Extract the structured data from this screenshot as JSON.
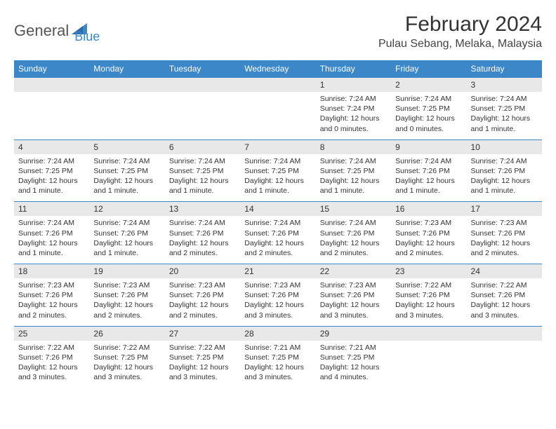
{
  "logo": {
    "text1": "General",
    "text2": "Blue"
  },
  "title": "February 2024",
  "location": "Pulau Sebang, Melaka, Malaysia",
  "colors": {
    "header_bg": "#3b87c8",
    "header_text": "#ffffff",
    "daynum_bg": "#e8e8e8",
    "row_border": "#3b87c8",
    "text": "#333333",
    "logo_gray": "#555555",
    "logo_blue": "#3b87c8",
    "background": "#ffffff"
  },
  "fonts": {
    "title_size": 30,
    "location_size": 16,
    "weekday_size": 12,
    "daynum_size": 12,
    "detail_size": 10.5
  },
  "weekdays": [
    "Sunday",
    "Monday",
    "Tuesday",
    "Wednesday",
    "Thursday",
    "Friday",
    "Saturday"
  ],
  "weeks": [
    {
      "days": [
        null,
        null,
        null,
        null,
        {
          "n": "1",
          "sr": "7:24 AM",
          "ss": "7:24 PM",
          "dl": "12 hours and 0 minutes."
        },
        {
          "n": "2",
          "sr": "7:24 AM",
          "ss": "7:25 PM",
          "dl": "12 hours and 0 minutes."
        },
        {
          "n": "3",
          "sr": "7:24 AM",
          "ss": "7:25 PM",
          "dl": "12 hours and 1 minute."
        }
      ]
    },
    {
      "days": [
        {
          "n": "4",
          "sr": "7:24 AM",
          "ss": "7:25 PM",
          "dl": "12 hours and 1 minute."
        },
        {
          "n": "5",
          "sr": "7:24 AM",
          "ss": "7:25 PM",
          "dl": "12 hours and 1 minute."
        },
        {
          "n": "6",
          "sr": "7:24 AM",
          "ss": "7:25 PM",
          "dl": "12 hours and 1 minute."
        },
        {
          "n": "7",
          "sr": "7:24 AM",
          "ss": "7:25 PM",
          "dl": "12 hours and 1 minute."
        },
        {
          "n": "8",
          "sr": "7:24 AM",
          "ss": "7:25 PM",
          "dl": "12 hours and 1 minute."
        },
        {
          "n": "9",
          "sr": "7:24 AM",
          "ss": "7:26 PM",
          "dl": "12 hours and 1 minute."
        },
        {
          "n": "10",
          "sr": "7:24 AM",
          "ss": "7:26 PM",
          "dl": "12 hours and 1 minute."
        }
      ]
    },
    {
      "days": [
        {
          "n": "11",
          "sr": "7:24 AM",
          "ss": "7:26 PM",
          "dl": "12 hours and 1 minute."
        },
        {
          "n": "12",
          "sr": "7:24 AM",
          "ss": "7:26 PM",
          "dl": "12 hours and 1 minute."
        },
        {
          "n": "13",
          "sr": "7:24 AM",
          "ss": "7:26 PM",
          "dl": "12 hours and 2 minutes."
        },
        {
          "n": "14",
          "sr": "7:24 AM",
          "ss": "7:26 PM",
          "dl": "12 hours and 2 minutes."
        },
        {
          "n": "15",
          "sr": "7:24 AM",
          "ss": "7:26 PM",
          "dl": "12 hours and 2 minutes."
        },
        {
          "n": "16",
          "sr": "7:23 AM",
          "ss": "7:26 PM",
          "dl": "12 hours and 2 minutes."
        },
        {
          "n": "17",
          "sr": "7:23 AM",
          "ss": "7:26 PM",
          "dl": "12 hours and 2 minutes."
        }
      ]
    },
    {
      "days": [
        {
          "n": "18",
          "sr": "7:23 AM",
          "ss": "7:26 PM",
          "dl": "12 hours and 2 minutes."
        },
        {
          "n": "19",
          "sr": "7:23 AM",
          "ss": "7:26 PM",
          "dl": "12 hours and 2 minutes."
        },
        {
          "n": "20",
          "sr": "7:23 AM",
          "ss": "7:26 PM",
          "dl": "12 hours and 2 minutes."
        },
        {
          "n": "21",
          "sr": "7:23 AM",
          "ss": "7:26 PM",
          "dl": "12 hours and 3 minutes."
        },
        {
          "n": "22",
          "sr": "7:23 AM",
          "ss": "7:26 PM",
          "dl": "12 hours and 3 minutes."
        },
        {
          "n": "23",
          "sr": "7:22 AM",
          "ss": "7:26 PM",
          "dl": "12 hours and 3 minutes."
        },
        {
          "n": "24",
          "sr": "7:22 AM",
          "ss": "7:26 PM",
          "dl": "12 hours and 3 minutes."
        }
      ]
    },
    {
      "days": [
        {
          "n": "25",
          "sr": "7:22 AM",
          "ss": "7:26 PM",
          "dl": "12 hours and 3 minutes."
        },
        {
          "n": "26",
          "sr": "7:22 AM",
          "ss": "7:25 PM",
          "dl": "12 hours and 3 minutes."
        },
        {
          "n": "27",
          "sr": "7:22 AM",
          "ss": "7:25 PM",
          "dl": "12 hours and 3 minutes."
        },
        {
          "n": "28",
          "sr": "7:21 AM",
          "ss": "7:25 PM",
          "dl": "12 hours and 3 minutes."
        },
        {
          "n": "29",
          "sr": "7:21 AM",
          "ss": "7:25 PM",
          "dl": "12 hours and 4 minutes."
        },
        null,
        null
      ]
    }
  ],
  "labels": {
    "sunrise": "Sunrise: ",
    "sunset": "Sunset: ",
    "daylight": "Daylight: "
  }
}
